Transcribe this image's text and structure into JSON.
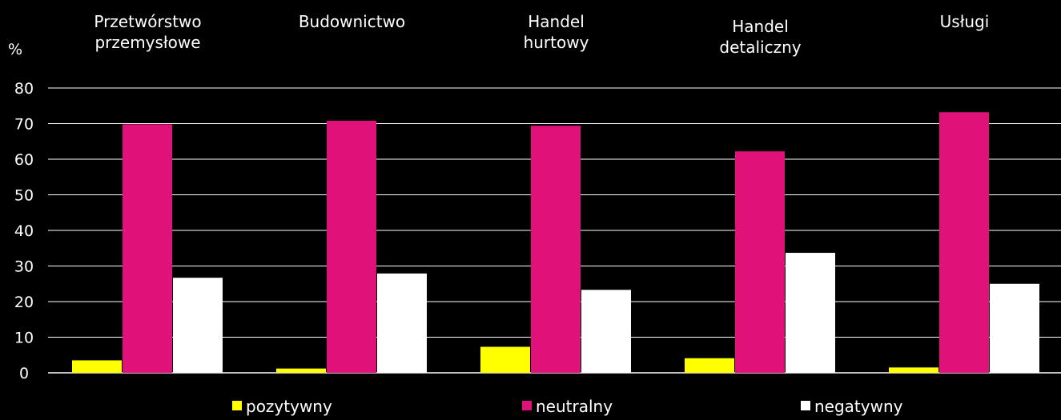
{
  "chart_data": {
    "type": "bar",
    "ylabel": "%",
    "ylim": [
      0,
      80
    ],
    "yticks": [
      0,
      10,
      20,
      30,
      40,
      50,
      60,
      70,
      80
    ],
    "grid": true,
    "legend_position": "bottom",
    "categories": [
      [
        "Przetwórstwo",
        "przemysłowe"
      ],
      [
        "Budownictwo"
      ],
      [
        "Handel",
        "hurtowy"
      ],
      [
        "Handel",
        "detaliczny"
      ],
      [
        "Usługi"
      ]
    ],
    "series": [
      {
        "name": "pozytywny",
        "color": "#ffff00",
        "values": [
          3.5,
          1.2,
          7.3,
          4.1,
          1.5
        ]
      },
      {
        "name": "neutralny",
        "color": "#e0127a",
        "values": [
          69.8,
          70.8,
          69.4,
          62.2,
          73.2
        ]
      },
      {
        "name": "negatywny",
        "color": "#ffffff",
        "values": [
          26.7,
          27.9,
          23.3,
          33.7,
          25.0
        ]
      }
    ]
  },
  "colors": {
    "background": "#000000",
    "gridline": "#ffffff",
    "text": "#ffffff"
  }
}
